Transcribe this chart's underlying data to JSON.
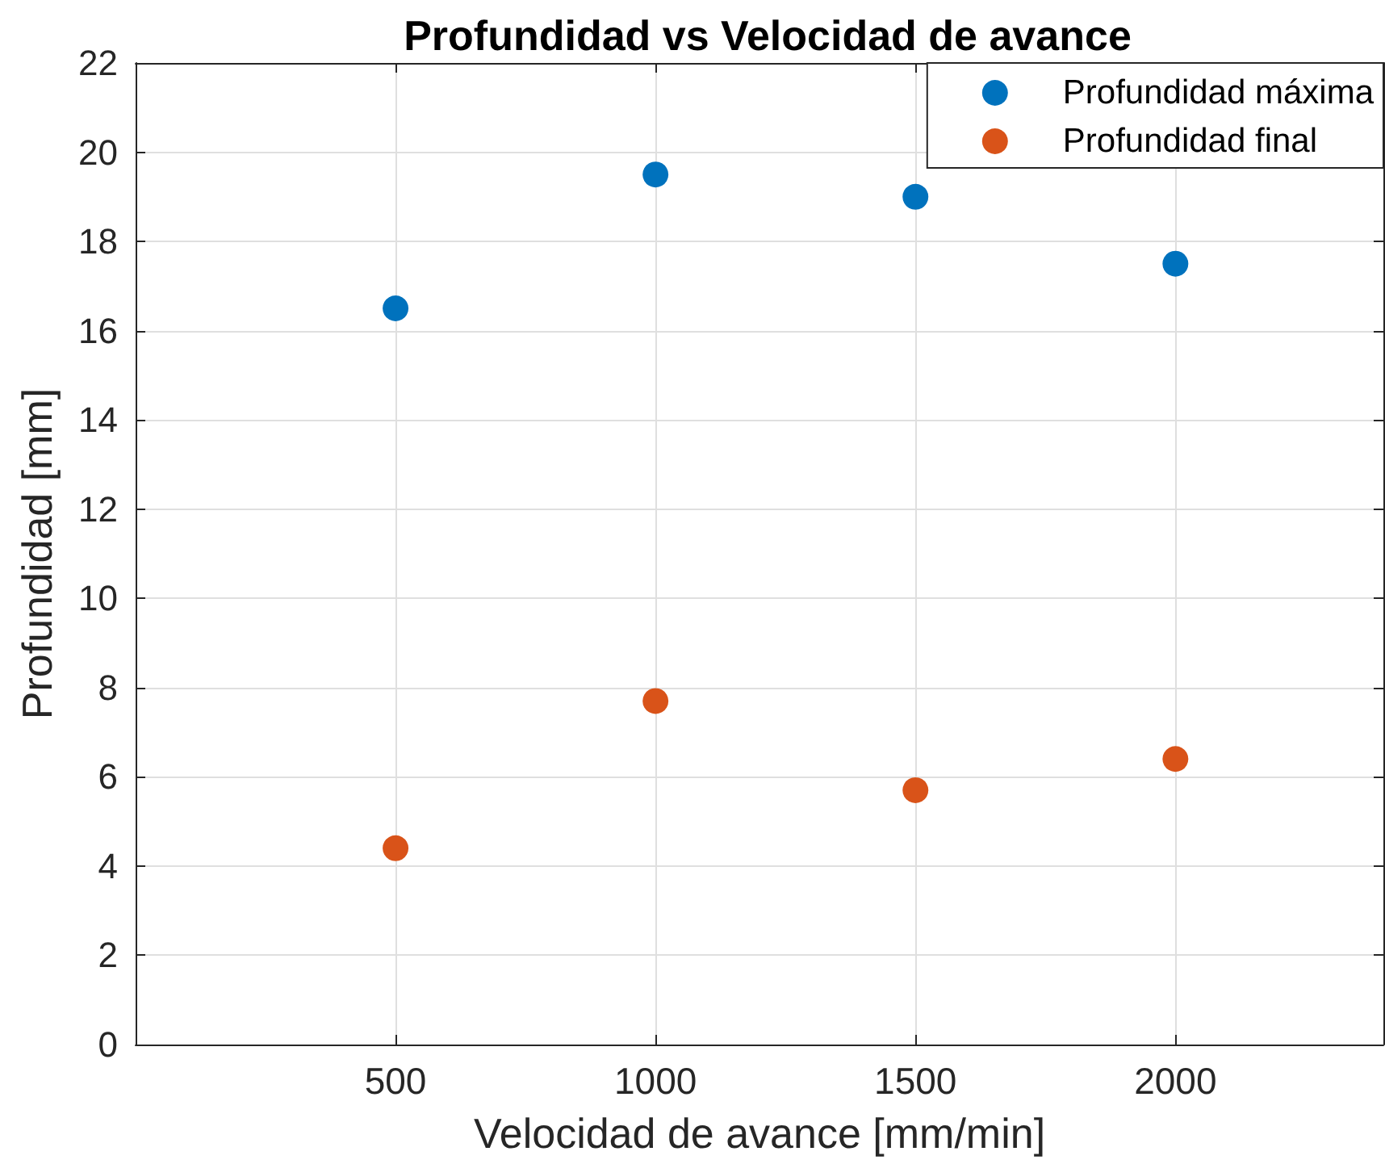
{
  "chart_data": {
    "type": "scatter",
    "title": "Profundidad vs Velocidad de avance",
    "xlabel": "Velocidad de avance [mm/min]",
    "ylabel": "Profundidad [mm]",
    "x": [
      500,
      1000,
      1500,
      2000
    ],
    "series": [
      {
        "name": "Profundidad máxima",
        "color": "#0072bd",
        "values": [
          16.5,
          19.5,
          19.0,
          17.5
        ]
      },
      {
        "name": "Profundidad final",
        "color": "#d95319",
        "values": [
          4.4,
          7.7,
          5.7,
          6.4
        ]
      }
    ],
    "xlim": [
      0,
      2400
    ],
    "ylim": [
      0,
      22
    ],
    "xticks": [
      500,
      1000,
      1500,
      2000
    ],
    "yticks": [
      0,
      2,
      4,
      6,
      8,
      10,
      12,
      14,
      16,
      18,
      20,
      22
    ],
    "grid": true,
    "legend": "top right",
    "marker": "circle"
  }
}
